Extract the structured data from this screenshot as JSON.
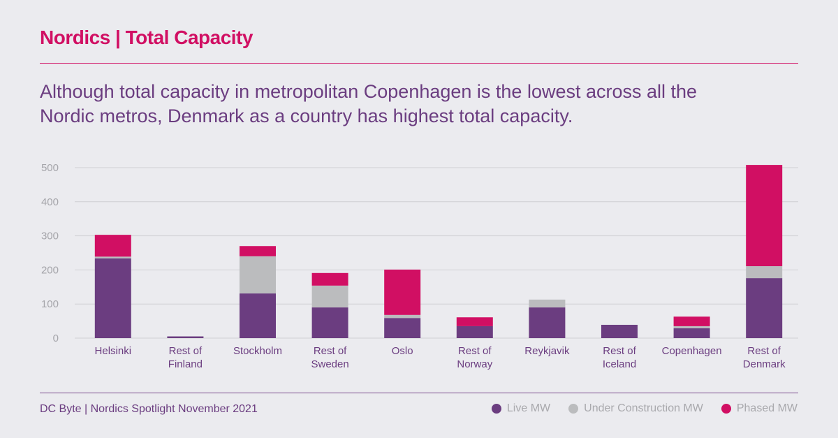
{
  "header": {
    "title": "Nordics | Total Capacity",
    "subtitle": "Although total capacity in metropolitan Copenhagen is the lowest across all the Nordic metros, Denmark as a country has highest total capacity."
  },
  "footer": {
    "source": "DC Byte | Nordics Spotlight November 2021"
  },
  "chart_data": {
    "type": "bar",
    "stacked": true,
    "title": "Nordics | Total Capacity",
    "xlabel": "",
    "ylabel": "",
    "ylim": [
      0,
      500
    ],
    "yticks": [
      0,
      100,
      200,
      300,
      400,
      500
    ],
    "grid": true,
    "legend_position": "bottom-right",
    "categories": [
      [
        "Helsinki"
      ],
      [
        "Rest of",
        "Finland"
      ],
      [
        "Stockholm"
      ],
      [
        "Rest of",
        "Sweden"
      ],
      [
        "Oslo"
      ],
      [
        "Rest of",
        "Norway"
      ],
      [
        "Reykjavik"
      ],
      [
        "Rest of",
        "Iceland"
      ],
      [
        "Copenhagen"
      ],
      [
        "Rest of",
        "Denmark"
      ]
    ],
    "series": [
      {
        "name": "Live MW",
        "color": "#6b3d80",
        "values": [
          234,
          5,
          131,
          90,
          59,
          35,
          90,
          39,
          29,
          176
        ]
      },
      {
        "name": "Under Construction MW",
        "color": "#bbbcbe",
        "values": [
          5,
          0,
          109,
          64,
          9,
          0,
          23,
          0,
          6,
          35
        ]
      },
      {
        "name": "Phased MW",
        "color": "#d10f63",
        "values": [
          64,
          0,
          30,
          37,
          133,
          26,
          0,
          0,
          28,
          297
        ]
      }
    ]
  }
}
